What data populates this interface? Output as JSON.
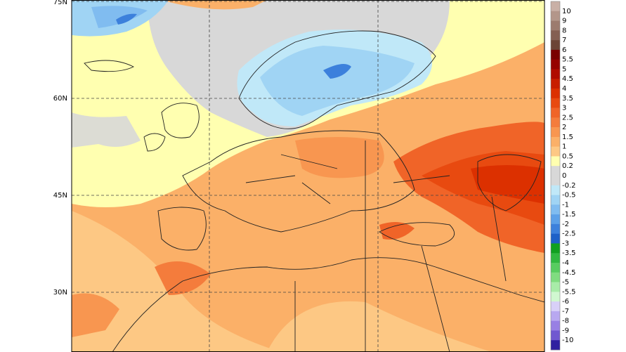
{
  "map": {
    "lat_labels": [
      "75N",
      "60N",
      "45N",
      "30N"
    ]
  },
  "colorbar": {
    "labels": [
      10,
      9,
      8,
      7,
      6,
      5.5,
      5,
      4.5,
      4,
      3.5,
      3,
      2.5,
      2,
      1.5,
      1,
      0.5,
      0.2,
      0,
      -0.2,
      -0.5,
      -1,
      -1.5,
      -2,
      -2.5,
      -3,
      -3.5,
      -4,
      -4.5,
      -5,
      -5.5,
      -6,
      -7,
      -8,
      -9,
      -10
    ],
    "colors": [
      "#c9b0a6",
      "#b3968a",
      "#9c7b6e",
      "#845f52",
      "#6b4436",
      "#7a0000",
      "#960000",
      "#b00a00",
      "#c81e00",
      "#dc3000",
      "#e84a10",
      "#f06428",
      "#f47c3c",
      "#f89650",
      "#fbb068",
      "#fdc884",
      "#ffffb0",
      "#d8d8d8",
      "#d8d8d8",
      "#c0e8f8",
      "#a0d4f4",
      "#80bcf0",
      "#5ca0e8",
      "#3c80dc",
      "#1e60c8",
      "#10a020",
      "#30b840",
      "#58cc60",
      "#80dc80",
      "#a8eca8",
      "#d0f8d0",
      "#d8d0f8",
      "#b8a8f0",
      "#9880e4",
      "#7058d0",
      "#3020a0"
    ]
  }
}
